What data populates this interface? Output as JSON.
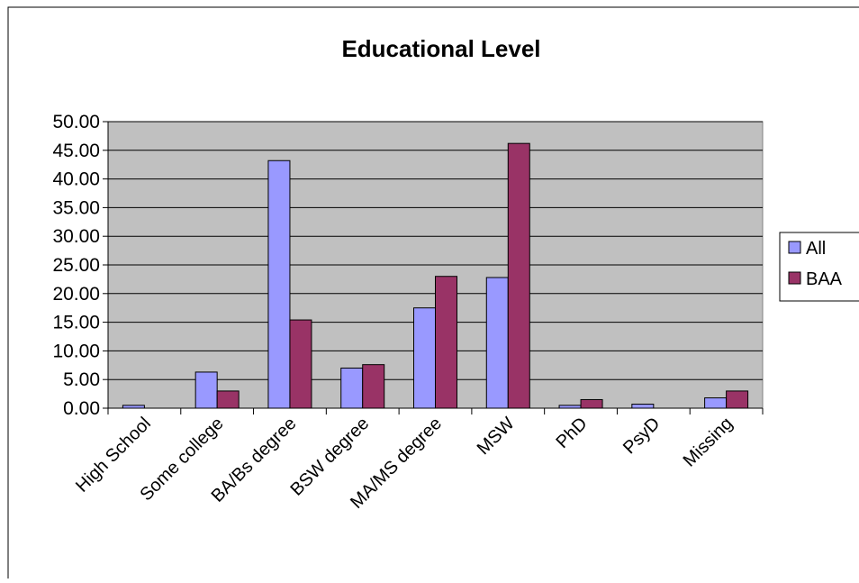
{
  "chart_data": {
    "type": "bar",
    "title": "Educational Level",
    "xlabel": "",
    "ylabel": "",
    "categories": [
      "High School",
      "Some college",
      "BA/Bs degree",
      "BSW degree",
      "MA/MS degree",
      "MSW",
      "PhD",
      "PsyD",
      "Missing"
    ],
    "series": [
      {
        "name": "All",
        "color": "#9999ff",
        "values": [
          0.5,
          6.3,
          43.2,
          7.0,
          17.5,
          22.8,
          0.5,
          0.7,
          1.8
        ]
      },
      {
        "name": "BAA",
        "color": "#993366",
        "values": [
          0.0,
          3.0,
          15.4,
          7.6,
          23.0,
          46.2,
          1.5,
          0.0,
          3.0
        ]
      }
    ],
    "ylim": [
      0,
      50
    ],
    "yticks": [
      "0.00",
      "5.00",
      "10.00",
      "15.00",
      "20.00",
      "25.00",
      "30.00",
      "35.00",
      "40.00",
      "45.00",
      "50.00"
    ],
    "grid": true,
    "plot_background": "#c0c0c0",
    "legend_position": "right"
  }
}
